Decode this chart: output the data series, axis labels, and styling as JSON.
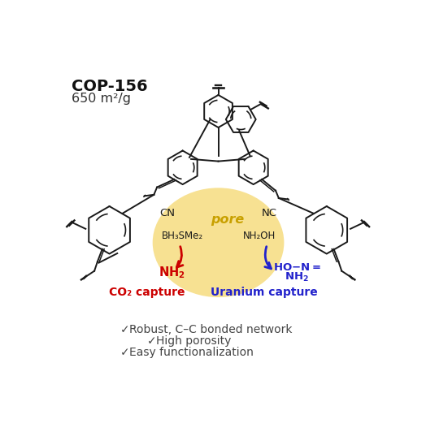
{
  "title_bold": "COP-156",
  "title_sub": "650 m²/g",
  "pore_label": "pore",
  "pore_color": "#F5D76E",
  "pore_alpha": 0.75,
  "co2_label": "CO₂ capture",
  "co2_color": "#CC0000",
  "uranium_label": "Uranium capture",
  "uranium_color": "#2222CC",
  "bh3_label": "BH₃SMe₂",
  "nh2oh_label": "NH₂OH",
  "cn_left": "CN",
  "nc_right": "NC",
  "bullet1": "Robust, C–C bonded network",
  "bullet2": "High porosity",
  "bullet3": "Easy functionalization",
  "bullet_color": "#444444",
  "bg_color": "#FFFFFF",
  "struct_color": "#1a1a1a"
}
